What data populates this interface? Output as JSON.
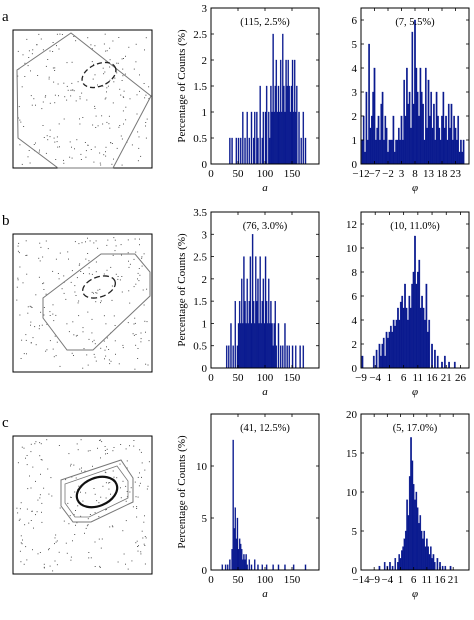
{
  "panels": [
    {
      "letter": "a",
      "scatter": {
        "ellipse_style": "dashed"
      }
    },
    {
      "letter": "b",
      "scatter": {
        "ellipse_style": "dashed"
      }
    },
    {
      "letter": "c",
      "scatter": {
        "ellipse_style": "solid"
      }
    }
  ],
  "colors": {
    "bar": "#0a1a8f",
    "axes": "#000000",
    "points": "#555555",
    "region": "#777777"
  },
  "chart_data": [
    {
      "panel": "a",
      "type": "bar",
      "variable": "a",
      "annotation": "(115, 2.5%)",
      "xlabel": "a",
      "ylabel": "Percentage of Counts (%)",
      "xlim": [
        0,
        200
      ],
      "ylim": [
        0,
        3
      ],
      "xticks": [
        0,
        50,
        100,
        150
      ],
      "yticks": [
        0,
        0.5,
        1,
        1.5,
        2,
        2.5,
        3
      ],
      "bin_width": 2,
      "x": [
        35,
        39,
        47,
        51,
        55,
        59,
        63,
        67,
        71,
        75,
        79,
        81,
        85,
        87,
        91,
        95,
        97,
        101,
        103,
        107,
        109,
        111,
        113,
        115,
        117,
        119,
        121,
        123,
        125,
        127,
        129,
        131,
        133,
        135,
        137,
        139,
        141,
        143,
        145,
        147,
        149,
        151,
        153,
        155,
        157,
        159,
        163,
        167,
        171,
        175
      ],
      "values": [
        0.5,
        0.5,
        0.5,
        0.5,
        0.5,
        1,
        0.5,
        1,
        0.5,
        1,
        0.5,
        1,
        1,
        0.5,
        1.5,
        0.5,
        1,
        1,
        1.5,
        1,
        0.5,
        1.5,
        1,
        2.5,
        1,
        1.5,
        2,
        1,
        1.5,
        1,
        2,
        1,
        2.5,
        1.5,
        1,
        2,
        1.5,
        2,
        1.5,
        1,
        1.5,
        2,
        1,
        2,
        1,
        1.5,
        1,
        0.5,
        1,
        0.5
      ]
    },
    {
      "panel": "a",
      "type": "bar",
      "variable": "phi",
      "annotation": "(7, 5.5%)",
      "xlabel": "φ",
      "ylabel": "",
      "xlim": [
        -12,
        28
      ],
      "ylim": [
        0,
        6.5
      ],
      "xticks": [
        -12,
        -7,
        -2,
        3,
        8,
        13,
        18,
        23
      ],
      "xtick_labels": [
        "−12",
        "−7",
        "−2",
        "3",
        "8",
        "13",
        "18",
        "23"
      ],
      "yticks": [
        0,
        1,
        2,
        3,
        4,
        5,
        6
      ],
      "bin_width": 0.5,
      "x": [
        -11.5,
        -11,
        -10.5,
        -10,
        -9.5,
        -9,
        -8.5,
        -8,
        -7.5,
        -7,
        -6.5,
        -6,
        -5.5,
        -5,
        -4.5,
        -4,
        -3.5,
        -3,
        -2.5,
        -2,
        -1.5,
        -1,
        -0.5,
        0,
        0.5,
        1,
        1.5,
        2,
        2.5,
        3,
        3.5,
        4,
        4.5,
        5,
        5.5,
        6,
        6.5,
        7,
        7.5,
        8,
        8.5,
        9,
        9.5,
        10,
        10.5,
        11,
        11.5,
        12,
        12.5,
        13,
        13.5,
        14,
        14.5,
        15,
        15.5,
        16,
        16.5,
        17,
        17.5,
        18,
        18.5,
        19,
        19.5,
        20,
        20.5,
        21,
        21.5,
        22,
        22.5,
        23,
        23.5,
        24,
        24.5,
        25,
        25.5,
        26
      ],
      "values": [
        1,
        2,
        0.5,
        3,
        1,
        5,
        1.5,
        2,
        3,
        4,
        1,
        1.5,
        2,
        1,
        2.5,
        3,
        1,
        2,
        1.5,
        0.5,
        1,
        1,
        1,
        2,
        0.5,
        1,
        1,
        1.5,
        1,
        2,
        1,
        3.5,
        2,
        4,
        2.5,
        3,
        1.5,
        5.5,
        2.5,
        6,
        4,
        3,
        2,
        4,
        3,
        2.5,
        1,
        4,
        1.5,
        3.5,
        2,
        3,
        1.5,
        2.5,
        1,
        3,
        2,
        1.5,
        1,
        2,
        3,
        1.5,
        2,
        1,
        2.5,
        1.5,
        2.5,
        1,
        2,
        1.5,
        1,
        2,
        0.5,
        1,
        0.5,
        1
      ]
    },
    {
      "panel": "b",
      "type": "bar",
      "variable": "a",
      "annotation": "(76, 3.0%)",
      "xlabel": "a",
      "ylabel": "Percentage of Counts (%)",
      "xlim": [
        0,
        200
      ],
      "ylim": [
        0,
        3.5
      ],
      "xticks": [
        0,
        50,
        100,
        150
      ],
      "yticks": [
        0,
        0.5,
        1,
        1.5,
        2,
        2.5,
        3,
        3.5
      ],
      "bin_width": 2,
      "x": [
        29,
        33,
        37,
        41,
        45,
        49,
        51,
        53,
        55,
        57,
        59,
        61,
        63,
        65,
        67,
        69,
        71,
        73,
        75,
        77,
        79,
        81,
        83,
        85,
        87,
        89,
        91,
        93,
        95,
        97,
        99,
        101,
        103,
        105,
        107,
        109,
        111,
        113,
        115,
        117,
        119,
        121,
        125,
        129,
        133,
        137,
        141,
        145,
        151,
        157,
        165,
        171
      ],
      "values": [
        0.5,
        0.5,
        1,
        0.5,
        1.5,
        0.5,
        1,
        1.5,
        1,
        2,
        1,
        2.5,
        1.5,
        1,
        2,
        1,
        1.5,
        2.5,
        1,
        3,
        1.5,
        1,
        2.5,
        1.5,
        2,
        1,
        2.5,
        1,
        1.5,
        2,
        1,
        2.5,
        1.5,
        1,
        2,
        1,
        1.5,
        1,
        0.5,
        1,
        1.5,
        0.5,
        1,
        0.5,
        0.5,
        1,
        0.5,
        0.5,
        0.5,
        0.5,
        0.5,
        0.5
      ]
    },
    {
      "panel": "b",
      "type": "bar",
      "variable": "phi",
      "annotation": "(10, 11.0%)",
      "xlabel": "φ",
      "ylabel": "",
      "xlim": [
        -9,
        29
      ],
      "ylim": [
        0,
        13
      ],
      "xticks": [
        -9,
        -4,
        1,
        6,
        11,
        16,
        21,
        26
      ],
      "xtick_labels": [
        "−9",
        "−4",
        "1",
        "6",
        "11",
        "16",
        "21",
        "26"
      ],
      "yticks": [
        0,
        2,
        4,
        6,
        8,
        10,
        12
      ],
      "bin_width": 0.5,
      "x": [
        -8.5,
        -4.5,
        -3.5,
        -2.5,
        -2,
        -1.5,
        -1,
        -0.5,
        0,
        0.5,
        1,
        1.5,
        2,
        2.5,
        3,
        3.5,
        4,
        4.5,
        5,
        5.5,
        6,
        6.5,
        7,
        7.5,
        8,
        8.5,
        9,
        9.5,
        10,
        10.5,
        11,
        11.5,
        12,
        12.5,
        13,
        13.5,
        14,
        14.5,
        15,
        16,
        17,
        18,
        19.5,
        20.5,
        22,
        24
      ],
      "values": [
        1,
        1,
        1.5,
        2,
        1,
        2,
        2.5,
        1,
        3,
        2.5,
        3,
        3.5,
        3,
        4,
        3.5,
        4,
        5,
        4,
        5.5,
        6,
        5,
        7,
        5,
        4,
        6,
        5,
        7,
        8,
        11,
        7,
        8,
        9,
        5,
        6,
        5,
        4,
        7,
        3,
        4,
        2,
        1.5,
        1,
        0.5,
        1,
        0.5,
        0.5
      ]
    },
    {
      "panel": "c",
      "type": "bar",
      "variable": "a",
      "annotation": "(41, 12.5%)",
      "xlabel": "a",
      "ylabel": "Percentage of Counts (%)",
      "xlim": [
        0,
        200
      ],
      "ylim": [
        0,
        15
      ],
      "xticks": [
        0,
        50,
        100,
        150
      ],
      "yticks": [
        0,
        5,
        10
      ],
      "bin_width": 2,
      "x": [
        21,
        27,
        31,
        35,
        39,
        41,
        43,
        45,
        47,
        49,
        51,
        53,
        55,
        57,
        59,
        61,
        63,
        65,
        67,
        71,
        75,
        81,
        87,
        95,
        103,
        115,
        125,
        137,
        153,
        175
      ],
      "values": [
        0.5,
        0.5,
        0.5,
        1,
        2,
        12.5,
        4,
        6,
        3,
        5,
        2,
        3,
        2.5,
        2,
        1,
        1.5,
        1,
        1.5,
        0.5,
        1,
        0.5,
        1,
        0.5,
        0.5,
        0.5,
        0.5,
        0.5,
        0.5,
        0.5,
        0.5
      ]
    },
    {
      "panel": "c",
      "type": "bar",
      "variable": "phi",
      "annotation": "(5, 17.0%)",
      "xlabel": "φ",
      "ylabel": "",
      "xlim": [
        -14,
        27
      ],
      "ylim": [
        0,
        20
      ],
      "xticks": [
        -14,
        -9,
        -4,
        1,
        6,
        11,
        16,
        21
      ],
      "xtick_labels": [
        "−14",
        "−9",
        "−4",
        "1",
        "6",
        "11",
        "16",
        "21"
      ],
      "yticks": [
        0,
        5,
        10,
        15,
        20
      ],
      "bin_width": 0.5,
      "x": [
        -7,
        -5,
        -4,
        -3,
        -2,
        -1,
        0,
        0.5,
        1,
        1.5,
        2,
        2.5,
        3,
        3.5,
        4,
        4.5,
        5,
        5.5,
        6,
        6.5,
        7,
        7.5,
        8,
        8.5,
        9,
        9.5,
        10,
        10.5,
        11,
        11.5,
        12,
        12.5,
        13,
        13.5,
        14,
        15,
        16,
        17,
        18,
        20
      ],
      "values": [
        0.5,
        1,
        0.5,
        1,
        0.5,
        1.5,
        1,
        2,
        1.5,
        2.5,
        3,
        4,
        5,
        9,
        7,
        12,
        17,
        14,
        11,
        9,
        10,
        8,
        6,
        7,
        5,
        4,
        5,
        3,
        4,
        3,
        2,
        3,
        1.5,
        2,
        1,
        1.5,
        1,
        0.5,
        0.5,
        0.5
      ]
    }
  ]
}
